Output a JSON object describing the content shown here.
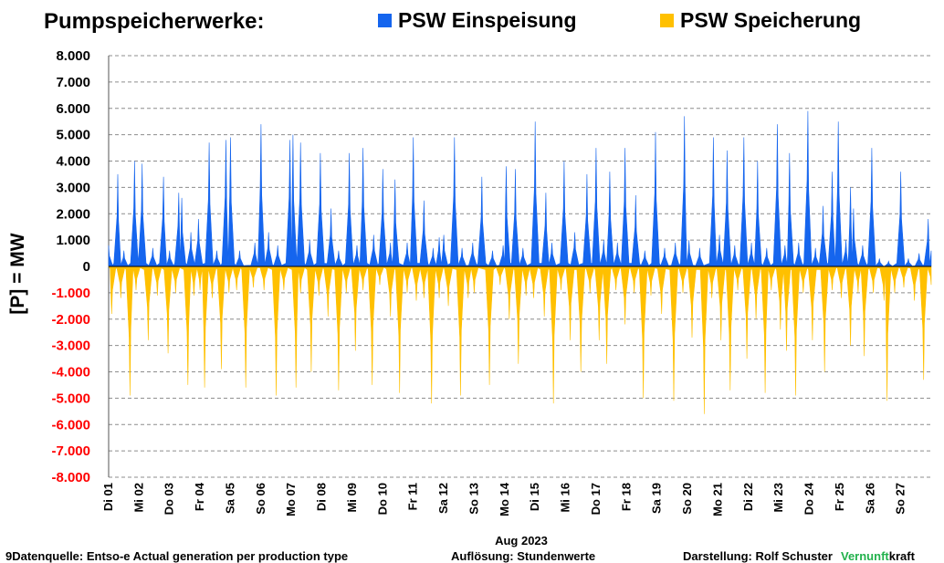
{
  "header": {
    "title": "Pumpspeicherwerke:",
    "legend": [
      {
        "label": "PSW Einspeisung",
        "color": "#1565ee"
      },
      {
        "label": "PSW Speicherung",
        "color": "#ffc000"
      }
    ]
  },
  "footer": {
    "source": "9Datenquelle: Entso-e  Actual generation per production type",
    "resolution": "Auflösung: Stundenwerte",
    "credit": "Darstellung:  Rolf Schuster",
    "brand_part1": "Vernunft",
    "brand_part2": "kraft"
  },
  "chart_data": {
    "type": "area",
    "xlabel": "Aug 2023",
    "ylabel": "[P]  = MW",
    "ylim": [
      -8000,
      8000
    ],
    "y_ticks": [
      {
        "value": 8000,
        "label": "8.000"
      },
      {
        "value": 7000,
        "label": "7.000"
      },
      {
        "value": 6000,
        "label": "6.000"
      },
      {
        "value": 5000,
        "label": "5.000"
      },
      {
        "value": 4000,
        "label": "4.000"
      },
      {
        "value": 3000,
        "label": "3.000"
      },
      {
        "value": 2000,
        "label": "2.000"
      },
      {
        "value": 1000,
        "label": "1.000"
      },
      {
        "value": 0,
        "label": "0"
      },
      {
        "value": -1000,
        "label": "-1.000"
      },
      {
        "value": -2000,
        "label": "-2.000"
      },
      {
        "value": -3000,
        "label": "-3.000"
      },
      {
        "value": -4000,
        "label": "-4.000"
      },
      {
        "value": -5000,
        "label": "-5.000"
      },
      {
        "value": -6000,
        "label": "-6.000"
      },
      {
        "value": -7000,
        "label": "-7.000"
      },
      {
        "value": -8000,
        "label": "-8.000"
      }
    ],
    "negative_tick_color": "#ff0000",
    "grid": "horizontal-dashed",
    "x_unit": "day of Aug 2023 (hourly resolution)",
    "xlim": [
      1,
      28
    ],
    "categories": [
      "Di 01",
      "Mi 02",
      "Do 03",
      "Fr 04",
      "Sa 05",
      "So 06",
      "Mo 07",
      "Di 08",
      "Mi 09",
      "Do 10",
      "Fr 11",
      "Sa 12",
      "So 13",
      "Mo 14",
      "Di 15",
      "Mi 16",
      "Do 17",
      "Fr 18",
      "Sa 19",
      "So 20",
      "Mo 21",
      "Di 22",
      "Mi 23",
      "Do 24",
      "Fr 25",
      "Sa 26",
      "So 27"
    ],
    "series": [
      {
        "name": "PSW Einspeisung",
        "color": "#1565ee",
        "peaks": [
          [
            1.0,
            800
          ],
          [
            1.3,
            3500
          ],
          [
            1.5,
            600
          ],
          [
            1.85,
            4000
          ],
          [
            2.1,
            3900
          ],
          [
            2.45,
            700
          ],
          [
            2.8,
            3400
          ],
          [
            3.0,
            600
          ],
          [
            3.3,
            2800
          ],
          [
            3.4,
            2600
          ],
          [
            3.7,
            1300
          ],
          [
            3.95,
            1800
          ],
          [
            4.3,
            4700
          ],
          [
            4.55,
            600
          ],
          [
            4.85,
            4800
          ],
          [
            5.0,
            4900
          ],
          [
            5.3,
            600
          ],
          [
            5.8,
            900
          ],
          [
            6.0,
            5400
          ],
          [
            6.25,
            1300
          ],
          [
            6.55,
            800
          ],
          [
            6.95,
            4800
          ],
          [
            7.05,
            5000
          ],
          [
            7.3,
            4700
          ],
          [
            7.6,
            1000
          ],
          [
            7.95,
            4300
          ],
          [
            8.3,
            2200
          ],
          [
            8.55,
            600
          ],
          [
            8.9,
            4300
          ],
          [
            9.15,
            800
          ],
          [
            9.35,
            4500
          ],
          [
            9.7,
            1200
          ],
          [
            10.0,
            3700
          ],
          [
            10.25,
            900
          ],
          [
            10.4,
            3300
          ],
          [
            10.8,
            900
          ],
          [
            11.0,
            4900
          ],
          [
            11.35,
            2500
          ],
          [
            11.65,
            700
          ],
          [
            11.85,
            1100
          ],
          [
            12.0,
            1200
          ],
          [
            12.35,
            4900
          ],
          [
            12.6,
            700
          ],
          [
            12.95,
            900
          ],
          [
            13.25,
            3400
          ],
          [
            13.6,
            600
          ],
          [
            13.95,
            800
          ],
          [
            14.05,
            3800
          ],
          [
            14.35,
            3700
          ],
          [
            14.6,
            700
          ],
          [
            15.0,
            5500
          ],
          [
            15.35,
            2800
          ],
          [
            15.55,
            900
          ],
          [
            15.95,
            4000
          ],
          [
            16.3,
            1300
          ],
          [
            16.7,
            3500
          ],
          [
            17.0,
            4500
          ],
          [
            17.25,
            1000
          ],
          [
            17.45,
            3600
          ],
          [
            17.7,
            900
          ],
          [
            17.95,
            4500
          ],
          [
            18.3,
            2700
          ],
          [
            18.6,
            600
          ],
          [
            18.95,
            5100
          ],
          [
            19.25,
            700
          ],
          [
            19.6,
            900
          ],
          [
            19.9,
            5700
          ],
          [
            20.05,
            1000
          ],
          [
            20.4,
            700
          ],
          [
            20.85,
            4900
          ],
          [
            21.05,
            1200
          ],
          [
            21.3,
            4400
          ],
          [
            21.55,
            800
          ],
          [
            21.85,
            4900
          ],
          [
            22.1,
            900
          ],
          [
            22.3,
            4000
          ],
          [
            22.6,
            700
          ],
          [
            22.95,
            5400
          ],
          [
            23.2,
            800
          ],
          [
            23.35,
            4300
          ],
          [
            23.65,
            900
          ],
          [
            23.95,
            5900
          ],
          [
            24.2,
            700
          ],
          [
            24.45,
            2300
          ],
          [
            24.75,
            3600
          ],
          [
            24.95,
            5500
          ],
          [
            25.2,
            1000
          ],
          [
            25.35,
            3000
          ],
          [
            25.45,
            2200
          ],
          [
            25.75,
            800
          ],
          [
            26.05,
            4500
          ],
          [
            26.3,
            300
          ],
          [
            26.6,
            200
          ],
          [
            27.0,
            3600
          ],
          [
            27.25,
            300
          ],
          [
            27.6,
            500
          ],
          [
            27.9,
            1800
          ],
          [
            28.0,
            600
          ]
        ]
      },
      {
        "name": "PSW Speicherung",
        "color": "#ffc000",
        "peaks": [
          [
            1.1,
            -1800
          ],
          [
            1.4,
            -1200
          ],
          [
            1.7,
            -4900
          ],
          [
            1.9,
            -900
          ],
          [
            2.3,
            -2800
          ],
          [
            2.6,
            -1100
          ],
          [
            2.95,
            -3300
          ],
          [
            3.2,
            -1000
          ],
          [
            3.6,
            -4500
          ],
          [
            3.8,
            -1100
          ],
          [
            4.0,
            -900
          ],
          [
            4.15,
            -4600
          ],
          [
            4.4,
            -1200
          ],
          [
            4.7,
            -3900
          ],
          [
            4.95,
            -1000
          ],
          [
            5.2,
            -900
          ],
          [
            5.5,
            -4600
          ],
          [
            5.75,
            -800
          ],
          [
            6.1,
            -900
          ],
          [
            6.5,
            -4900
          ],
          [
            6.75,
            -900
          ],
          [
            7.15,
            -4600
          ],
          [
            7.3,
            -1000
          ],
          [
            7.65,
            -4000
          ],
          [
            7.9,
            -1100
          ],
          [
            8.2,
            -1900
          ],
          [
            8.55,
            -4700
          ],
          [
            8.8,
            -1000
          ],
          [
            9.1,
            -3200
          ],
          [
            9.35,
            -900
          ],
          [
            9.65,
            -4500
          ],
          [
            9.9,
            -700
          ],
          [
            10.25,
            -1900
          ],
          [
            10.55,
            -4800
          ],
          [
            10.8,
            -1000
          ],
          [
            11.1,
            -1300
          ],
          [
            11.35,
            -1200
          ],
          [
            11.6,
            -5200
          ],
          [
            11.85,
            -1200
          ],
          [
            12.15,
            -1500
          ],
          [
            12.55,
            -4900
          ],
          [
            12.8,
            -1200
          ],
          [
            13.0,
            -1000
          ],
          [
            13.5,
            -4500
          ],
          [
            13.85,
            -700
          ],
          [
            14.15,
            -2000
          ],
          [
            14.45,
            -3700
          ],
          [
            14.7,
            -1100
          ],
          [
            14.95,
            -1200
          ],
          [
            15.3,
            -1900
          ],
          [
            15.6,
            -5200
          ],
          [
            15.85,
            -900
          ],
          [
            16.15,
            -2800
          ],
          [
            16.5,
            -4000
          ],
          [
            16.8,
            -1000
          ],
          [
            17.1,
            -2800
          ],
          [
            17.35,
            -3700
          ],
          [
            17.65,
            -900
          ],
          [
            17.95,
            -2200
          ],
          [
            18.25,
            -1000
          ],
          [
            18.55,
            -5000
          ],
          [
            18.8,
            -1100
          ],
          [
            19.15,
            -1800
          ],
          [
            19.55,
            -5100
          ],
          [
            19.85,
            -1000
          ],
          [
            20.15,
            -2700
          ],
          [
            20.55,
            -5600
          ],
          [
            20.8,
            -1200
          ],
          [
            21.1,
            -2800
          ],
          [
            21.4,
            -4700
          ],
          [
            21.65,
            -900
          ],
          [
            21.95,
            -3500
          ],
          [
            22.25,
            -2000
          ],
          [
            22.55,
            -4800
          ],
          [
            22.75,
            -900
          ],
          [
            23.05,
            -2400
          ],
          [
            23.25,
            -3200
          ],
          [
            23.55,
            -4900
          ],
          [
            23.8,
            -1000
          ],
          [
            24.1,
            -2800
          ],
          [
            24.5,
            -4000
          ],
          [
            24.75,
            -900
          ],
          [
            25.05,
            -1200
          ],
          [
            25.35,
            -3000
          ],
          [
            25.6,
            -1000
          ],
          [
            25.8,
            -3400
          ],
          [
            26.1,
            -1000
          ],
          [
            26.45,
            -1300
          ],
          [
            26.55,
            -5100
          ],
          [
            26.8,
            -1000
          ],
          [
            27.1,
            -800
          ],
          [
            27.45,
            -1300
          ],
          [
            27.75,
            -4300
          ],
          [
            28.0,
            -700
          ]
        ]
      }
    ]
  }
}
